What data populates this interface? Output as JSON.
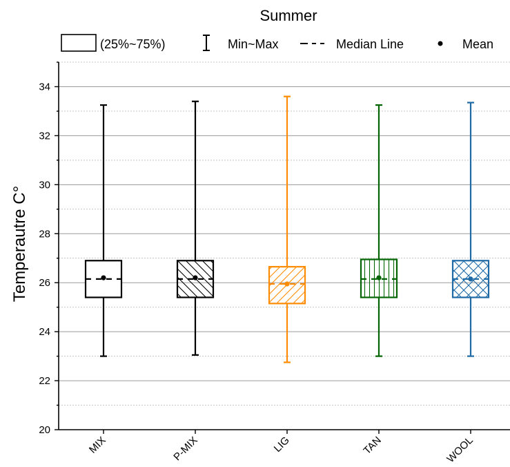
{
  "chart_data": {
    "type": "box",
    "title": "Summer",
    "ylabel": "Temperautre C°",
    "xlabel": "",
    "ylim": [
      20,
      35
    ],
    "yticks": [
      20,
      22,
      24,
      26,
      28,
      30,
      32,
      34
    ],
    "categories": [
      "MIX",
      "P-MIX",
      "LIG",
      "TAN",
      "WOOL"
    ],
    "grid": true,
    "legend": {
      "placement": "top",
      "items": [
        {
          "symbol": "box",
          "label": "(25%~75%)"
        },
        {
          "symbol": "whisker",
          "label": "Min~Max"
        },
        {
          "symbol": "dash",
          "label": "Median Line"
        },
        {
          "symbol": "dot",
          "label": "Mean"
        }
      ]
    },
    "series": [
      {
        "category": "MIX",
        "min": 23.0,
        "q1": 25.4,
        "median": 26.15,
        "q3": 26.9,
        "max": 33.25,
        "mean": 26.2,
        "color": "#000000",
        "hatch": "none"
      },
      {
        "category": "P-MIX",
        "min": 23.05,
        "q1": 25.4,
        "median": 26.15,
        "q3": 26.9,
        "max": 33.4,
        "mean": 26.2,
        "color": "#000000",
        "hatch": "diag-back"
      },
      {
        "category": "LIG",
        "min": 22.75,
        "q1": 25.15,
        "median": 25.95,
        "q3": 26.65,
        "max": 33.6,
        "mean": 25.95,
        "color": "#ff8c00",
        "hatch": "diag-fwd"
      },
      {
        "category": "TAN",
        "min": 23.0,
        "q1": 25.4,
        "median": 26.15,
        "q3": 26.95,
        "max": 33.25,
        "mean": 26.2,
        "color": "#006400",
        "hatch": "vertical"
      },
      {
        "category": "WOOL",
        "min": 23.0,
        "q1": 25.4,
        "median": 26.15,
        "q3": 26.9,
        "max": 33.35,
        "mean": 26.15,
        "color": "#1f6aa5",
        "hatch": "cross"
      }
    ]
  }
}
